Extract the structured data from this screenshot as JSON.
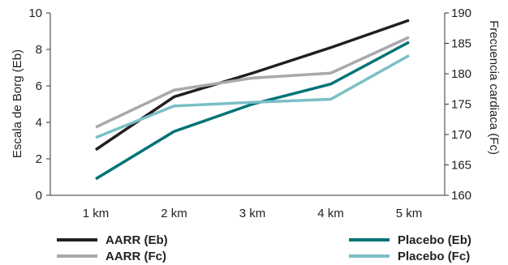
{
  "chart_data": {
    "type": "line",
    "categories": [
      "1 km",
      "2 km",
      "3 km",
      "4 km",
      "5 km"
    ],
    "y_left": {
      "label": "Escala de Borg (Eb)",
      "range": [
        0,
        10
      ],
      "ticks": [
        0,
        2,
        4,
        6,
        8,
        10
      ]
    },
    "y_right": {
      "label": "Frecuencia cardiaca (Fc)",
      "range": [
        160,
        190
      ],
      "ticks": [
        160,
        165,
        170,
        175,
        180,
        185,
        190
      ]
    },
    "series": [
      {
        "name": "AARR (Eb)",
        "axis": "left",
        "color": "#231f20",
        "values": [
          2.5,
          5.4,
          6.7,
          8.1,
          9.6
        ]
      },
      {
        "name": "AARR (Fc)",
        "axis": "right",
        "color": "#a7a9ac",
        "values": [
          171.2,
          177.3,
          179.3,
          180.1,
          186.0
        ]
      },
      {
        "name": "Placebo (Eb)",
        "axis": "left",
        "color": "#007377",
        "values": [
          0.9,
          3.5,
          5.0,
          6.1,
          8.4
        ]
      },
      {
        "name": "Placebo (Fc)",
        "axis": "right",
        "color": "#7bbfc6",
        "values": [
          169.5,
          174.7,
          175.3,
          175.8,
          183.0
        ]
      }
    ],
    "grid": false,
    "legend_placement": "bottom"
  }
}
